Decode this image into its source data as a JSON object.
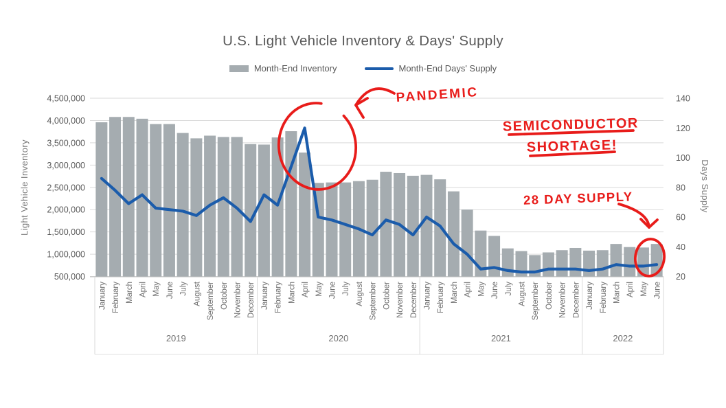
{
  "chart_data": {
    "type": "bar+line combo",
    "title": "U.S. Light Vehicle Inventory & Days' Supply",
    "month_names": [
      "January",
      "February",
      "March",
      "April",
      "May",
      "June",
      "July",
      "August",
      "September",
      "October",
      "November",
      "December"
    ],
    "year_groups": [
      {
        "label": "2019",
        "count": 12
      },
      {
        "label": "2020",
        "count": 12
      },
      {
        "label": "2021",
        "count": 12
      },
      {
        "label": "2022",
        "count": 6
      }
    ],
    "left_axis": {
      "label": "Light Vehicle Inventory",
      "min": 500000,
      "max": 4500000,
      "step": 500000,
      "tick_labels": [
        "500,000",
        "1,000,000",
        "1,500,000",
        "2,000,000",
        "2,500,000",
        "3,000,000",
        "3,500,000",
        "4,000,000",
        "4,500,000"
      ]
    },
    "right_axis": {
      "label": "Days Supply",
      "min": 20,
      "max": 140,
      "step": 20,
      "tick_labels": [
        "20",
        "40",
        "60",
        "80",
        "100",
        "120",
        "140"
      ]
    },
    "series": [
      {
        "name": "Month-End Inventory",
        "type": "bar",
        "axis": "left",
        "color": "#a5acb0",
        "values": [
          3960000,
          4080000,
          4080000,
          4040000,
          3920000,
          3920000,
          3720000,
          3600000,
          3660000,
          3630000,
          3630000,
          3470000,
          3460000,
          3620000,
          3760000,
          3280000,
          2600000,
          2610000,
          2610000,
          2640000,
          2670000,
          2850000,
          2820000,
          2760000,
          2780000,
          2680000,
          2410000,
          2000000,
          1530000,
          1410000,
          1130000,
          1070000,
          980000,
          1040000,
          1090000,
          1140000,
          1080000,
          1090000,
          1230000,
          1160000,
          1150000,
          1230000
        ]
      },
      {
        "name": "Month-End Days' Supply",
        "type": "line",
        "axis": "right",
        "color": "#1b5cab",
        "values": [
          86,
          78,
          69,
          75,
          66,
          65,
          64,
          61,
          68,
          73,
          66,
          57,
          75,
          68,
          94,
          120,
          60,
          58,
          55,
          52,
          48,
          58,
          55,
          48,
          60,
          54,
          42,
          35,
          25,
          26,
          24,
          23,
          23,
          25,
          25,
          25,
          24,
          25,
          28,
          27,
          27,
          28
        ]
      }
    ],
    "grid": "horizontal",
    "legend_position": "top"
  },
  "annotations": {
    "color": "#e81c1a",
    "pandemic": {
      "text": "PANDEMIC"
    },
    "semiconductor_line1": {
      "text": "SEMICONDUCTOR"
    },
    "semiconductor_line2": {
      "text": "SHORTAGE!"
    },
    "day_supply": {
      "text": "28 DAY SUPPLY"
    }
  }
}
